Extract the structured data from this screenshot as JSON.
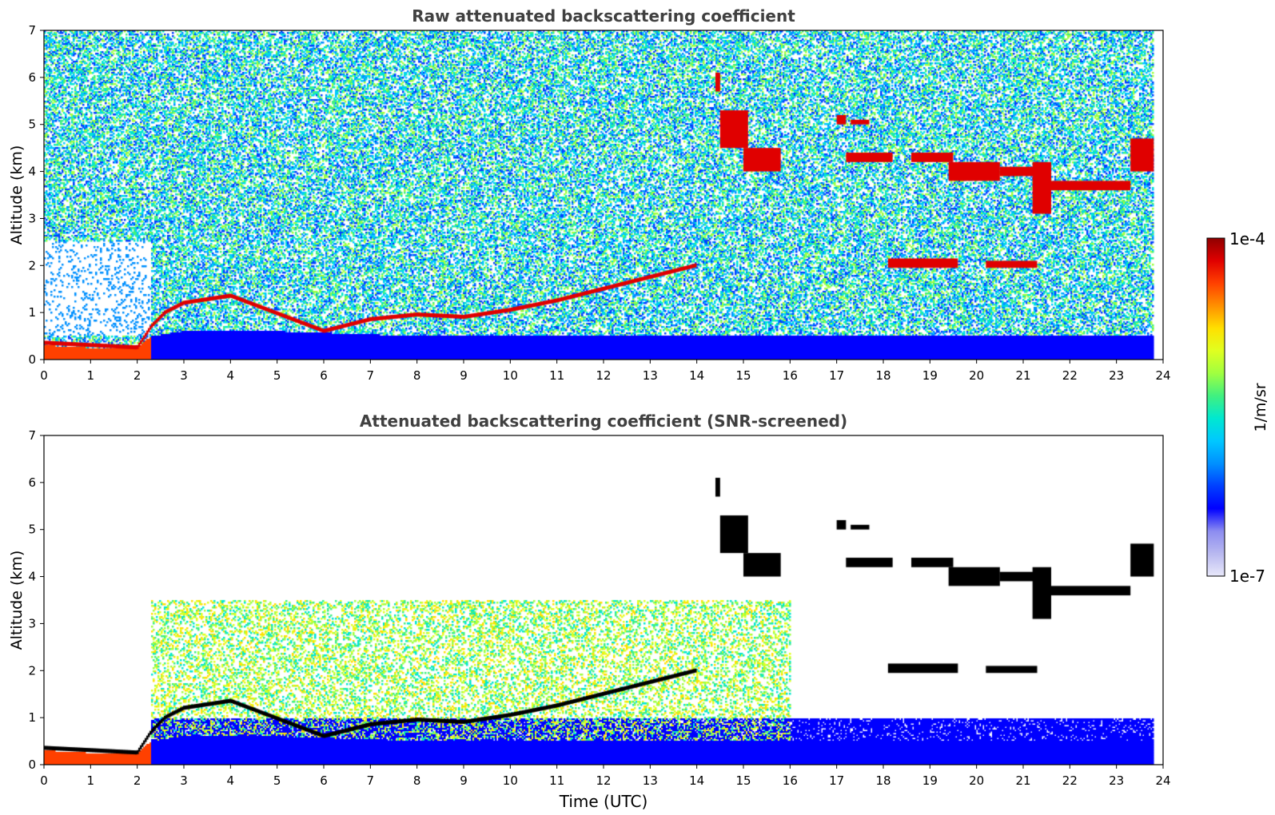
{
  "chart_data": [
    {
      "type": "heatmap",
      "title": "Raw attenuated backscattering coefficient",
      "xlabel": "",
      "ylabel": "Altitude (km)",
      "xlim": [
        0,
        24
      ],
      "ylim": [
        0,
        7
      ],
      "x_ticks": [
        "0",
        "1",
        "2",
        "3",
        "4",
        "5",
        "6",
        "7",
        "8",
        "9",
        "10",
        "11",
        "12",
        "13",
        "14",
        "15",
        "16",
        "17",
        "18",
        "19",
        "20",
        "21",
        "22",
        "23",
        "24"
      ],
      "y_ticks": [
        "0",
        "1",
        "2",
        "3",
        "4",
        "5",
        "6",
        "7"
      ],
      "color_scale": "log",
      "data_end_time": 23.8,
      "features": {
        "surface_layer_top": [
          [
            0,
            0.3
          ],
          [
            1,
            0.25
          ],
          [
            2,
            0.25
          ],
          [
            2.3,
            0.5
          ],
          [
            3,
            0.6
          ],
          [
            5,
            0.6
          ],
          [
            8,
            0.5
          ],
          [
            12,
            0.5
          ],
          [
            16,
            0.5
          ],
          [
            24,
            0.5
          ]
        ],
        "boundary_layer_top": [
          [
            0,
            0.35
          ],
          [
            2,
            0.25
          ],
          [
            2.3,
            0.7
          ],
          [
            2.6,
            1.0
          ],
          [
            3,
            1.2
          ],
          [
            4,
            1.35
          ],
          [
            6,
            0.6
          ],
          [
            7,
            0.85
          ],
          [
            8,
            0.95
          ],
          [
            9,
            0.9
          ],
          [
            10,
            1.05
          ],
          [
            11,
            1.25
          ],
          [
            12,
            1.5
          ],
          [
            13,
            1.75
          ],
          [
            14,
            2.0
          ]
        ],
        "clouds": [
          {
            "x": [
              14.4,
              14.5
            ],
            "y": [
              5.7,
              6.1
            ]
          },
          {
            "x": [
              14.5,
              15.1
            ],
            "y": [
              4.5,
              5.3
            ]
          },
          {
            "x": [
              15.0,
              15.8
            ],
            "y": [
              4.0,
              4.5
            ]
          },
          {
            "x": [
              17.0,
              17.2
            ],
            "y": [
              5.0,
              5.2
            ]
          },
          {
            "x": [
              17.3,
              17.7
            ],
            "y": [
              5.0,
              5.1
            ]
          },
          {
            "x": [
              17.2,
              18.2
            ],
            "y": [
              4.2,
              4.4
            ]
          },
          {
            "x": [
              18.6,
              19.5
            ],
            "y": [
              4.2,
              4.4
            ]
          },
          {
            "x": [
              19.4,
              20.5
            ],
            "y": [
              3.8,
              4.2
            ]
          },
          {
            "x": [
              20.5,
              21.5
            ],
            "y": [
              3.9,
              4.1
            ]
          },
          {
            "x": [
              21.2,
              21.6
            ],
            "y": [
              3.1,
              4.2
            ]
          },
          {
            "x": [
              21.6,
              23.3
            ],
            "y": [
              3.6,
              3.8
            ]
          },
          {
            "x": [
              23.3,
              23.8
            ],
            "y": [
              4.0,
              4.7
            ]
          },
          {
            "x": [
              18.1,
              19.6
            ],
            "y": [
              1.95,
              2.15
            ]
          },
          {
            "x": [
              20.2,
              21.3
            ],
            "y": [
              1.95,
              2.1
            ]
          }
        ]
      }
    },
    {
      "type": "heatmap",
      "title": "Attenuated backscattering coefficient (SNR-screened)",
      "xlabel": "Time (UTC)",
      "ylabel": "Altitude (km)",
      "xlim": [
        0,
        24
      ],
      "ylim": [
        0,
        7
      ],
      "x_ticks": [
        "0",
        "1",
        "2",
        "3",
        "4",
        "5",
        "6",
        "7",
        "8",
        "9",
        "10",
        "11",
        "12",
        "13",
        "14",
        "15",
        "16",
        "17",
        "18",
        "19",
        "20",
        "21",
        "22",
        "23",
        "24"
      ],
      "y_ticks": [
        "0",
        "1",
        "2",
        "3",
        "4",
        "5",
        "6",
        "7"
      ],
      "color_scale": "log",
      "data_end_time": 23.8,
      "cloud_color": "#000000"
    }
  ],
  "colorbar": {
    "label": "1/m/sr",
    "max_label": "1e-4",
    "min_label": "1e-7",
    "range": [
      1e-07,
      0.0001
    ],
    "colors": [
      "#e8e8fa",
      "#b8b8f0",
      "#8c8cf0",
      "#0000ff",
      "#0040ff",
      "#0090ff",
      "#00c8ff",
      "#00e8d0",
      "#40f080",
      "#a0ff40",
      "#e0ff20",
      "#ffe000",
      "#ff9000",
      "#ff4000",
      "#e00000",
      "#900000"
    ]
  }
}
